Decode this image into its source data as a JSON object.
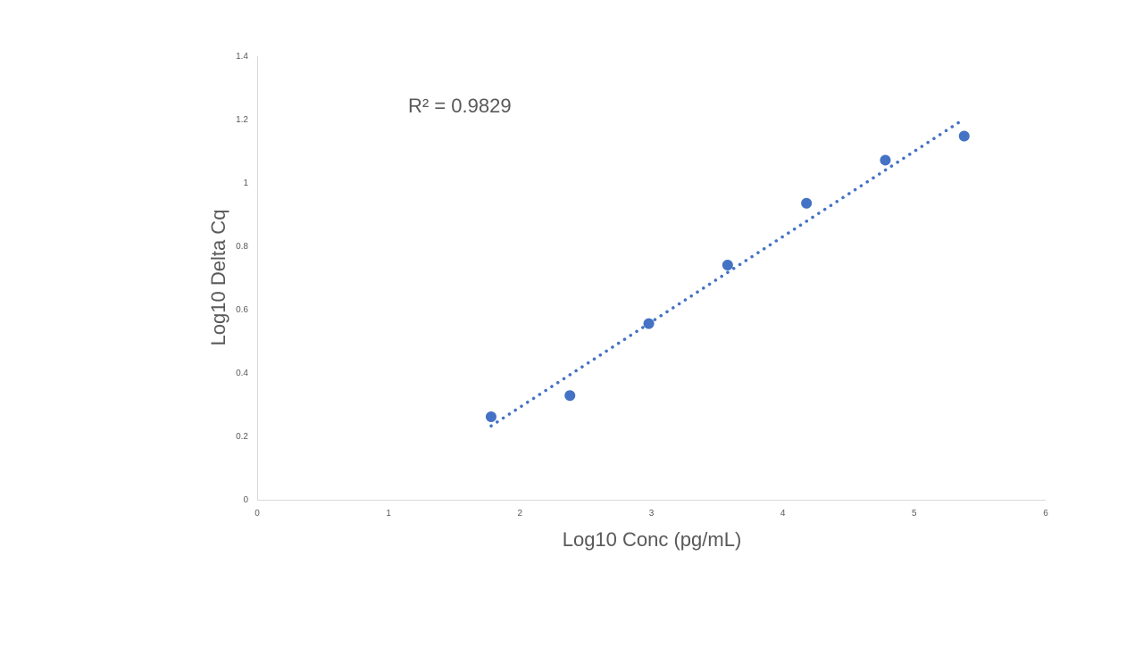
{
  "chart_data": {
    "type": "scatter",
    "title": "",
    "xlabel": "Log10 Conc (pg/mL)",
    "ylabel": "Log10 Delta Cq",
    "xlim": [
      0,
      6
    ],
    "ylim": [
      0,
      1.4
    ],
    "xticks": [
      "0",
      "1",
      "2",
      "3",
      "4",
      "5",
      "6"
    ],
    "yticks": [
      "0",
      "0.2",
      "0.4",
      "0.6",
      "0.8",
      "1",
      "1.2",
      "1.4"
    ],
    "grid": false,
    "legend": "none",
    "series": [
      {
        "x": [
          1.78,
          2.38,
          2.98,
          3.58,
          4.18,
          4.78,
          5.38
        ],
        "y": [
          0.262,
          0.329,
          0.556,
          0.741,
          0.936,
          1.072,
          1.148
        ],
        "color": "#4472C4"
      }
    ],
    "trendline": {
      "type": "linear",
      "style": "dotted",
      "color": "#4472C4",
      "x": [
        1.78,
        5.38
      ],
      "y": [
        0.233,
        1.202
      ]
    },
    "annotations": [
      {
        "text": "R² = 0.9829"
      }
    ]
  }
}
